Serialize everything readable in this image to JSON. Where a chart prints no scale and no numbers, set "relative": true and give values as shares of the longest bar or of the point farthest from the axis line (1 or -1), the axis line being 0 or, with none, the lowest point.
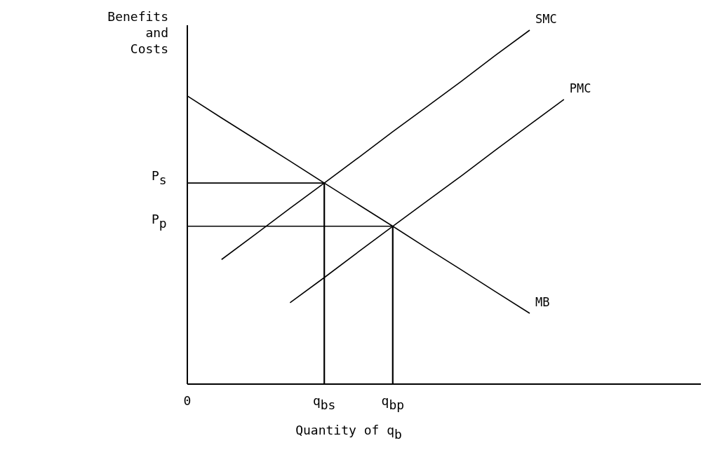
{
  "chart_data": {
    "type": "line",
    "relative": true,
    "xlabel": "Quantity of q$_{b}$",
    "ylabel": "Benefits and Costs",
    "categories": [
      "0",
      null,
      null,
      null,
      "q$_{bs}$",
      null,
      "q$_{bp}$",
      null,
      null,
      null,
      null,
      null,
      null,
      null,
      null,
      null
    ],
    "series": [
      {
        "name": "SMC",
        "color": "#000000",
        "values": [
          null,
          0.352,
          0.424,
          0.497,
          0.568,
          0.64,
          0.713,
          0.784,
          0.855,
          0.929,
          1,
          null,
          null,
          null,
          null,
          null
        ]
      },
      {
        "name": "PMC",
        "color": "#000000",
        "values": [
          null,
          null,
          null,
          0.23,
          0.301,
          0.374,
          0.446,
          0.517,
          0.588,
          0.661,
          0.733,
          0.804,
          null,
          null,
          null,
          null
        ]
      },
      {
        "name": "MB",
        "color": "#000000",
        "values": [
          0.814,
          0.752,
          0.691,
          0.63,
          0.568,
          0.507,
          0.446,
          0.384,
          0.323,
          0.261,
          0.2,
          null,
          null,
          null,
          null,
          null
        ]
      }
    ],
    "ref_lines": [
      {
        "axis": "y",
        "value": 0.568,
        "label": "P$_{s}$"
      },
      {
        "axis": "y",
        "value": 0.446,
        "label": "P$_{p}$"
      },
      {
        "axis": "x",
        "value": "q$_{bs}$"
      },
      {
        "axis": "x",
        "value": "q$_{bp}$"
      }
    ],
    "legend": false,
    "marker": "none",
    "line_style": "solid"
  }
}
